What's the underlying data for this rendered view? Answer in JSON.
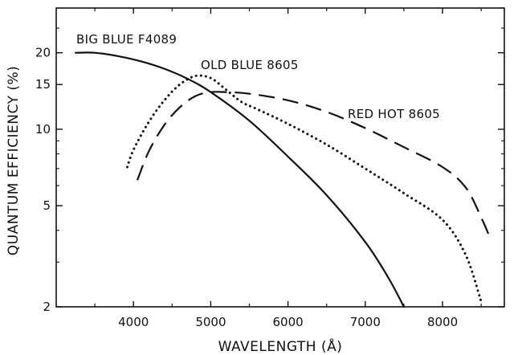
{
  "chart_data": {
    "type": "line",
    "xlabel": "WAVELENGTH (Å)",
    "ylabel": "QUANTUM EFFICIENCY (%)",
    "xlim": [
      3000,
      8800
    ],
    "ylim": [
      2,
      30
    ],
    "yscale": "log",
    "grid": false,
    "x_ticks": [
      4000,
      5000,
      6000,
      7000,
      8000
    ],
    "y_ticks": [
      2,
      5,
      10,
      15,
      20
    ],
    "series": [
      {
        "name": "BIG BLUE F4089",
        "style": "solid",
        "x": [
          3250,
          3500,
          3800,
          4100,
          4400,
          4700,
          5000,
          5500,
          6000,
          6500,
          7000,
          7300,
          7500
        ],
        "y": [
          20,
          20,
          19.4,
          18.5,
          17.3,
          15.8,
          14.0,
          10.8,
          7.8,
          5.5,
          3.6,
          2.6,
          2.0
        ]
      },
      {
        "name": "OLD BLUE 8605",
        "style": "dotted",
        "x": [
          3920,
          4000,
          4200,
          4400,
          4600,
          4800,
          5000,
          5200,
          5400,
          5600,
          6000,
          6500,
          7000,
          7500,
          8000,
          8300,
          8500
        ],
        "y": [
          7.1,
          8.3,
          10.7,
          13.0,
          15.0,
          16.2,
          15.9,
          14.3,
          12.8,
          12.0,
          10.5,
          8.7,
          7.0,
          5.6,
          4.4,
          3.2,
          2.1
        ]
      },
      {
        "name": "RED HOT 8605",
        "style": "dashed",
        "x": [
          4050,
          4200,
          4400,
          4600,
          4800,
          5000,
          5200,
          5500,
          6000,
          6500,
          7000,
          7500,
          8000,
          8300,
          8500,
          8620
        ],
        "y": [
          6.3,
          8.2,
          10.4,
          12.2,
          13.5,
          14.0,
          14.0,
          13.8,
          13.0,
          11.7,
          10.1,
          8.5,
          7.1,
          5.9,
          4.5,
          3.7
        ]
      }
    ]
  },
  "labels": {
    "xlabel": "WAVELENGTH (Å)",
    "ylabel": "QUANTUM EFFICIENCY (%)",
    "big_blue": "BIG BLUE F4089",
    "old_blue": "OLD BLUE 8605",
    "red_hot": "RED HOT 8605"
  }
}
